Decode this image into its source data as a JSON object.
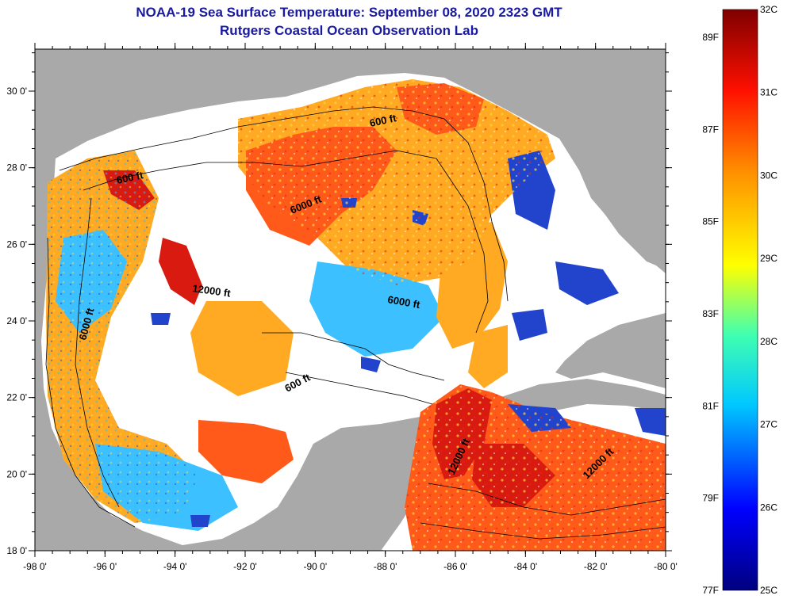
{
  "header": {
    "title": "NOAA-19 Sea Surface Temperature:  September 08, 2020 2323 GMT",
    "subtitle": "Rutgers Coastal Ocean Observation Lab"
  },
  "axes": {
    "lat_labels": [
      "30 0'",
      "28 0'",
      "26 0'",
      "24 0'",
      "22 0'",
      "20 0'",
      "18 0'"
    ],
    "lon_labels": [
      "-98 0'",
      "-96 0'",
      "-94 0'",
      "-92 0'",
      "-90 0'",
      "-88 0'",
      "-86 0'",
      "-84 0'",
      "-82 0'",
      "-80 0'"
    ]
  },
  "contour_labels": [
    "600 ft",
    "600 ft",
    "6000 ft",
    "12000 ft",
    "6000 ft",
    "6000 ft",
    "600 ft",
    "12000 ft",
    "12000 ft"
  ],
  "colorbar": {
    "c_labels": [
      "32C",
      "31C",
      "30C",
      "29C",
      "28C",
      "27C",
      "26C",
      "25C"
    ],
    "f_labels": [
      "89F",
      "87F",
      "85F",
      "83F",
      "81F",
      "79F",
      "77F"
    ]
  },
  "colors": {
    "land": "#a9a9a9",
    "cloud": "#ffffff",
    "title": "#1a1aa0",
    "warm": "#ff5a1a",
    "hot": "#d81a10",
    "mild": "#ffaa22",
    "cool": "#2244cc"
  }
}
